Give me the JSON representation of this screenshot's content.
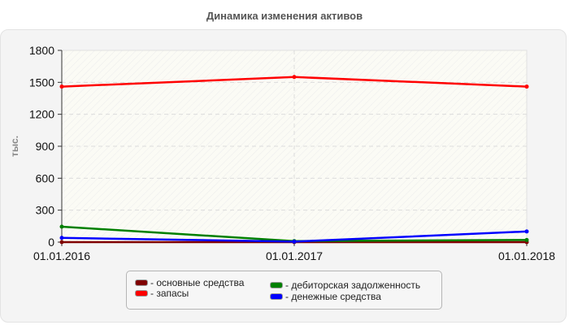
{
  "title": "Динамика изменения активов",
  "chart_data": {
    "type": "line",
    "title": "Динамика изменения активов",
    "xlabel": "",
    "ylabel": "тыс.",
    "categories": [
      "01.01.2016",
      "01.01.2017",
      "01.01.2018"
    ],
    "ylim": [
      0,
      1800
    ],
    "yticks": [
      0,
      300,
      600,
      900,
      1200,
      1500,
      1800
    ],
    "grid": true,
    "legend_position": "bottom",
    "series": [
      {
        "name": "основные средства",
        "color": "#800000",
        "values": [
          0,
          0,
          0
        ]
      },
      {
        "name": "запасы",
        "color": "#ff0000",
        "values": [
          1460,
          1550,
          1460
        ]
      },
      {
        "name": "дебиторская задолженность",
        "color": "#008000",
        "values": [
          145,
          10,
          20
        ]
      },
      {
        "name": "денежные средства",
        "color": "#0000ff",
        "values": [
          40,
          5,
          100
        ]
      }
    ]
  },
  "legend": {
    "items": [
      {
        "label": "- основные средства",
        "color": "#800000"
      },
      {
        "label": "- запасы",
        "color": "#ff0000"
      },
      {
        "label": "- дебиторская задолженность",
        "color": "#008000"
      },
      {
        "label": "- денежные средства",
        "color": "#0000ff"
      }
    ]
  }
}
